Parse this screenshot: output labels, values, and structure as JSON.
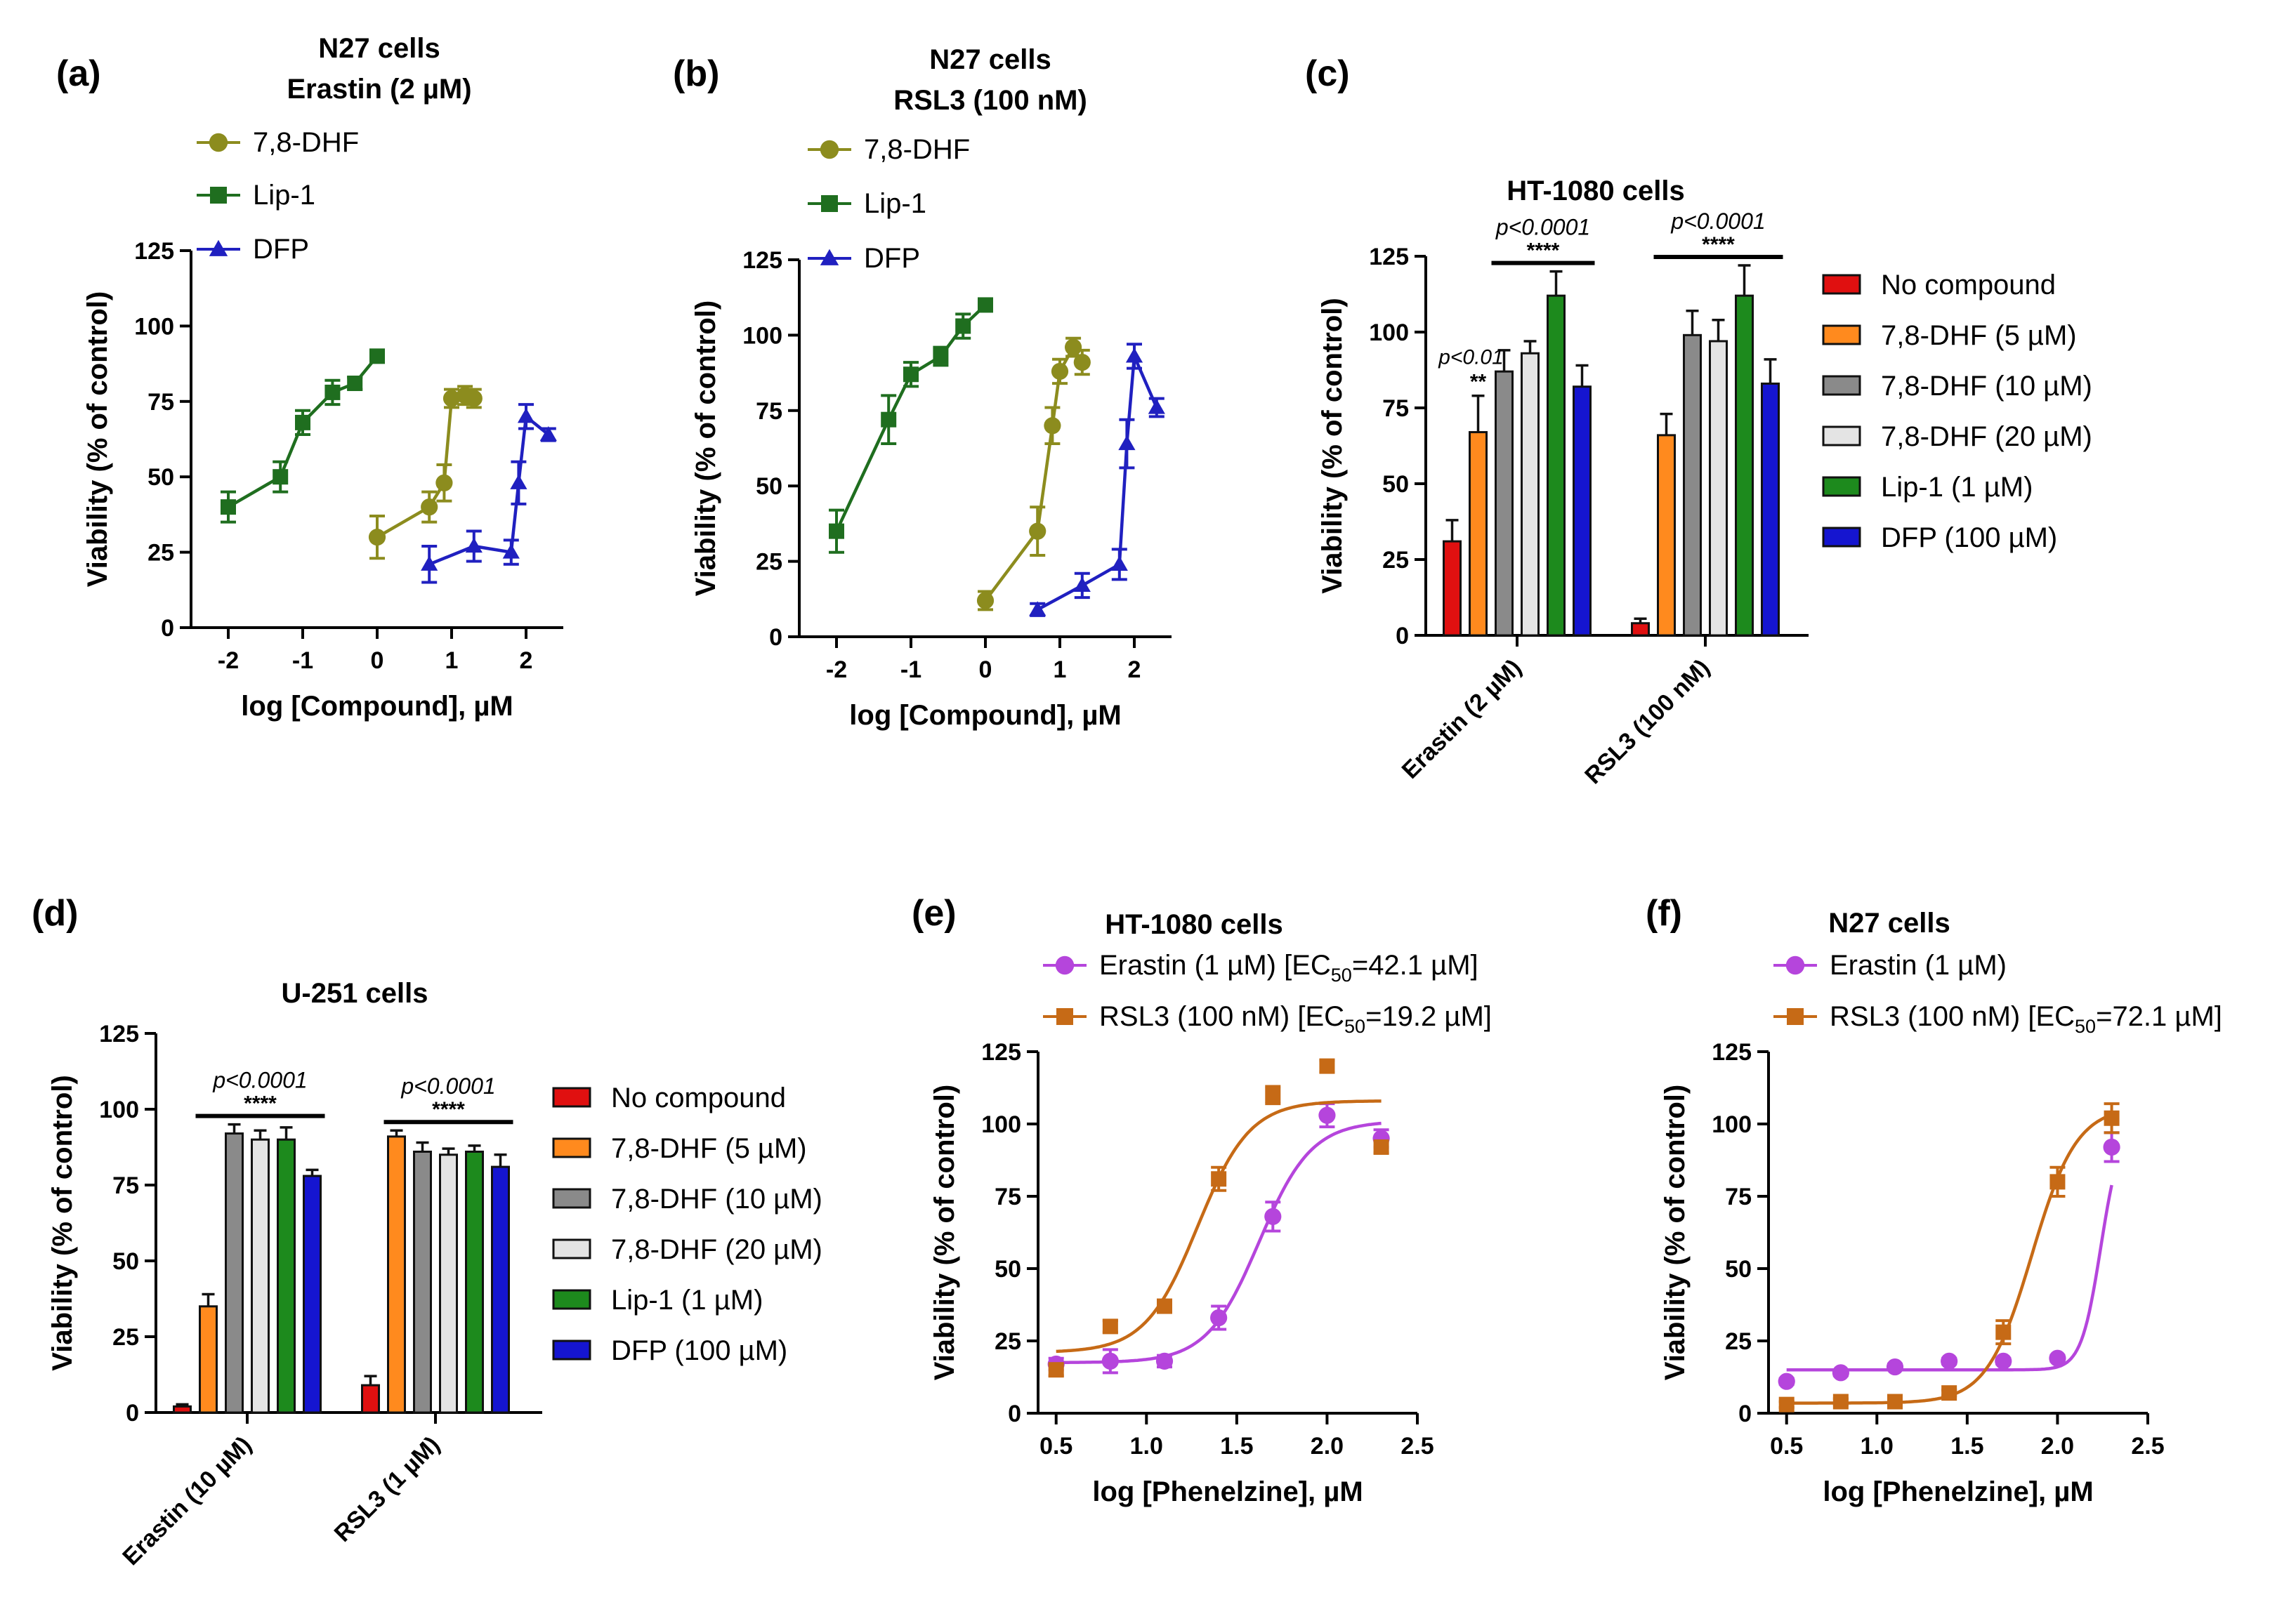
{
  "colors": {
    "dhf": "#8c8c1e",
    "lip": "#1f6e1f",
    "dfp": "#2020c0",
    "erastin": "#b545dc",
    "rsl3": "#c66a16",
    "bar_none": "#e01010",
    "bar_dhf5": "#ff8a1e",
    "bar_dhf10": "#8a8a8a",
    "bar_dhf20": "#e4e4e4",
    "bar_lip": "#1d8a1d",
    "bar_dfp": "#1515d0"
  },
  "chart_data": [
    {
      "id": "a",
      "type": "line",
      "label": "(a)",
      "title": [
        "N27 cells",
        "Erastin (2 µM)"
      ],
      "xlabel": "log [Compound], µM",
      "ylabel": "Viability (% of control)",
      "xlim": [
        -2.5,
        2.5
      ],
      "ylim": [
        0,
        125
      ],
      "xticks": [
        -2,
        -1,
        0,
        1,
        2
      ],
      "yticks": [
        0,
        25,
        50,
        75,
        100,
        125
      ],
      "legend_position": "top",
      "series": [
        {
          "name": "7,8-DHF",
          "marker": "circle",
          "color_key": "dhf",
          "x": [
            0,
            0.7,
            0.9,
            1.0,
            1.18,
            1.3
          ],
          "y": [
            30,
            40,
            48,
            76,
            77,
            76
          ],
          "err": [
            7,
            5,
            6,
            3,
            3,
            3
          ]
        },
        {
          "name": "Lip-1",
          "marker": "square",
          "color_key": "lip",
          "x": [
            -2,
            -1.3,
            -1,
            -0.6,
            -0.3,
            0
          ],
          "y": [
            40,
            50,
            68,
            78,
            81,
            90
          ],
          "err": [
            5,
            5,
            4,
            4,
            2,
            2
          ]
        },
        {
          "name": "DFP",
          "marker": "triangle",
          "color_key": "dfp",
          "x": [
            0.7,
            1.3,
            1.8,
            1.9,
            2.0,
            2.3
          ],
          "y": [
            21,
            27,
            25,
            48,
            70,
            64
          ],
          "err": [
            6,
            5,
            4,
            7,
            4,
            2
          ]
        }
      ]
    },
    {
      "id": "b",
      "type": "line",
      "label": "(b)",
      "title": [
        "N27 cells",
        "RSL3 (100 nM)"
      ],
      "xlabel": "log [Compound], µM",
      "ylabel": "Viability (% of control)",
      "xlim": [
        -2.5,
        2.5
      ],
      "ylim": [
        0,
        125
      ],
      "xticks": [
        -2,
        -1,
        0,
        1,
        2
      ],
      "yticks": [
        0,
        25,
        50,
        75,
        100,
        125
      ],
      "legend_position": "top",
      "series": [
        {
          "name": "7,8-DHF",
          "marker": "circle",
          "color_key": "dhf",
          "x": [
            0,
            0.7,
            0.9,
            1.0,
            1.18,
            1.3
          ],
          "y": [
            12,
            35,
            70,
            88,
            96,
            91
          ],
          "err": [
            3,
            8,
            6,
            4,
            3,
            4
          ]
        },
        {
          "name": "Lip-1",
          "marker": "square",
          "color_key": "lip",
          "x": [
            -2,
            -1.3,
            -1,
            -0.6,
            -0.3,
            0
          ],
          "y": [
            35,
            72,
            87,
            93,
            103,
            110
          ],
          "err": [
            7,
            8,
            4,
            3,
            4,
            2
          ]
        },
        {
          "name": "DFP",
          "marker": "triangle",
          "color_key": "dfp",
          "x": [
            0.7,
            1.3,
            1.8,
            1.9,
            2.0,
            2.3
          ],
          "y": [
            9,
            17,
            24,
            64,
            93,
            76
          ],
          "err": [
            2,
            4,
            5,
            8,
            4,
            3
          ]
        }
      ]
    },
    {
      "id": "c",
      "type": "bar",
      "label": "(c)",
      "title": [
        "HT-1080 cells"
      ],
      "xlabel": "",
      "ylabel": "Viability (% of control)",
      "ylim": [
        0,
        125
      ],
      "yticks": [
        0,
        25,
        50,
        75,
        100,
        125
      ],
      "categories": [
        "Erastin (2 µM)",
        "RSL3 (100 nM)"
      ],
      "legend_position": "right",
      "series": [
        {
          "name": "No compound",
          "color_key": "bar_none",
          "values": [
            31,
            4
          ],
          "err": [
            7,
            1.5
          ]
        },
        {
          "name": "7,8-DHF (5 µM)",
          "color_key": "bar_dhf5",
          "values": [
            67,
            66
          ],
          "err": [
            12,
            7
          ]
        },
        {
          "name": "7,8-DHF (10 µM)",
          "color_key": "bar_dhf10",
          "values": [
            87,
            99
          ],
          "err": [
            7,
            8
          ]
        },
        {
          "name": "7,8-DHF (20 µM)",
          "color_key": "bar_dhf20",
          "values": [
            93,
            97
          ],
          "err": [
            4,
            7
          ]
        },
        {
          "name": "Lip-1 (1 µM)",
          "color_key": "bar_lip",
          "values": [
            112,
            112
          ],
          "err": [
            8,
            10
          ]
        },
        {
          "name": "DFP (100 µM)",
          "color_key": "bar_dfp",
          "values": [
            82,
            83
          ],
          "err": [
            7,
            8
          ]
        }
      ],
      "annotations": [
        {
          "type": "single",
          "category": 0,
          "bar": 1,
          "text": "p<0.01",
          "stars": "**"
        },
        {
          "type": "bracket",
          "category": 0,
          "from_bar": 2,
          "to_bar": 5,
          "text": "p<0.0001",
          "stars": "****"
        },
        {
          "type": "bracket",
          "category": 1,
          "from_bar": 1,
          "to_bar": 5,
          "text": "p<0.0001",
          "stars": "****"
        }
      ]
    },
    {
      "id": "d",
      "type": "bar",
      "label": "(d)",
      "title": [
        "U-251 cells"
      ],
      "xlabel": "",
      "ylabel": "Viability (% of control)",
      "ylim": [
        0,
        125
      ],
      "yticks": [
        0,
        25,
        50,
        75,
        100,
        125
      ],
      "categories": [
        "Erastin (10 µM)",
        "RSL3 (1 µM)"
      ],
      "legend_position": "right",
      "series": [
        {
          "name": "No compound",
          "color_key": "bar_none",
          "values": [
            2,
            9
          ],
          "err": [
            0.7,
            3
          ]
        },
        {
          "name": "7,8-DHF (5 µM)",
          "color_key": "bar_dhf5",
          "values": [
            35,
            91
          ],
          "err": [
            4,
            2
          ]
        },
        {
          "name": "7,8-DHF (10 µM)",
          "color_key": "bar_dhf10",
          "values": [
            92,
            86
          ],
          "err": [
            3,
            3
          ]
        },
        {
          "name": "7,8-DHF (20 µM)",
          "color_key": "bar_dhf20",
          "values": [
            90,
            85
          ],
          "err": [
            3,
            2
          ]
        },
        {
          "name": "Lip-1 (1 µM)",
          "color_key": "bar_lip",
          "values": [
            90,
            86
          ],
          "err": [
            4,
            2
          ]
        },
        {
          "name": "DFP (100 µM)",
          "color_key": "bar_dfp",
          "values": [
            78,
            81
          ],
          "err": [
            2,
            4
          ]
        }
      ],
      "annotations": [
        {
          "type": "bracket",
          "category": 0,
          "from_bar": 1,
          "to_bar": 5,
          "text": "p<0.0001",
          "stars": "****"
        },
        {
          "type": "bracket",
          "category": 1,
          "from_bar": 1,
          "to_bar": 5,
          "text": "p<0.0001",
          "stars": "****"
        }
      ]
    },
    {
      "id": "e",
      "type": "line",
      "label": "(e)",
      "title": [
        "HT-1080 cells"
      ],
      "xlabel": "log [Phenelzine], µM",
      "ylabel": "Viability (% of control)",
      "xlim": [
        0.4,
        2.5
      ],
      "ylim": [
        0,
        125
      ],
      "xticks": [
        0.5,
        1.0,
        1.5,
        2.0,
        2.5
      ],
      "yticks": [
        0,
        25,
        50,
        75,
        100,
        125
      ],
      "legend_position": "top",
      "series": [
        {
          "name": "Erastin (1 µM)",
          "ec50_text": "42.1 µM",
          "marker": "circle",
          "color_key": "erastin",
          "x": [
            0.5,
            0.8,
            1.1,
            1.4,
            1.7,
            2.0,
            2.3
          ],
          "y": [
            17,
            18,
            18,
            33,
            68,
            103,
            95
          ],
          "err": [
            2,
            4,
            2,
            4,
            5,
            4,
            3
          ],
          "fit": {
            "bottom": 17.5,
            "top": 101,
            "logec50": 1.624,
            "hill": 3.0,
            "xrange": [
              0.5,
              2.3
            ]
          }
        },
        {
          "name": "RSL3 (100 nM)",
          "ec50_text": "19.2 µM",
          "marker": "square",
          "color_key": "rsl3",
          "x": [
            0.5,
            0.8,
            1.1,
            1.4,
            1.7,
            2.0,
            2.3
          ],
          "y": [
            15,
            30,
            37,
            81,
            110,
            120,
            92
          ],
          "err": [
            2,
            2,
            2,
            4,
            3,
            2,
            2
          ],
          "fit": {
            "bottom": 21,
            "top": 108,
            "logec50": 1.283,
            "hill": 3.0,
            "xrange": [
              0.5,
              2.3
            ]
          }
        }
      ]
    },
    {
      "id": "f",
      "type": "line",
      "label": "(f)",
      "title": [
        "N27 cells"
      ],
      "xlabel": "log [Phenelzine], µM",
      "ylabel": "Viability (% of control)",
      "xlim": [
        0.4,
        2.5
      ],
      "ylim": [
        0,
        125
      ],
      "xticks": [
        0.5,
        1.0,
        1.5,
        2.0,
        2.5
      ],
      "yticks": [
        0,
        25,
        50,
        75,
        100,
        125
      ],
      "legend_position": "top",
      "series": [
        {
          "name": "Erastin (1 µM)",
          "marker": "circle",
          "color_key": "erastin",
          "x": [
            0.5,
            0.8,
            1.1,
            1.4,
            1.7,
            2.0,
            2.3
          ],
          "y": [
            11,
            14,
            16,
            18,
            18,
            19,
            92
          ],
          "err": [
            1,
            1,
            1,
            1,
            1,
            1,
            5
          ],
          "fit": {
            "bottom": 15,
            "top": 100,
            "logec50": 2.24,
            "hill": 8.0,
            "xrange": [
              0.5,
              2.3
            ]
          }
        },
        {
          "name": "RSL3 (100 nM)",
          "ec50_text": "72.1 µM",
          "marker": "square",
          "color_key": "rsl3",
          "x": [
            0.5,
            0.8,
            1.1,
            1.4,
            1.7,
            2.0,
            2.3
          ],
          "y": [
            3,
            4,
            4,
            7,
            28,
            80,
            102
          ],
          "err": [
            1,
            1,
            1,
            1,
            4,
            5,
            5
          ],
          "fit": {
            "bottom": 3.5,
            "top": 106,
            "logec50": 1.858,
            "hill": 3.5,
            "xrange": [
              0.5,
              2.3
            ]
          }
        }
      ]
    }
  ]
}
